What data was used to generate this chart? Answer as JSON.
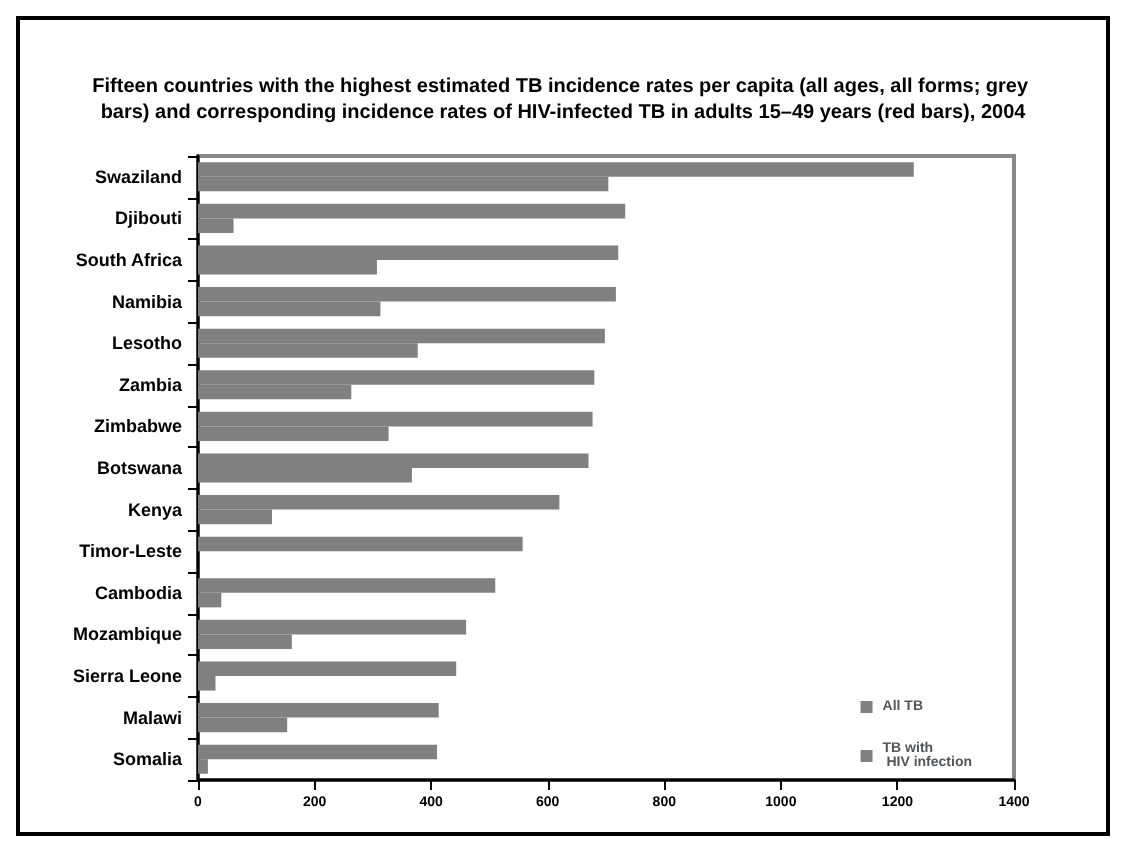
{
  "chart_data": {
    "type": "bar",
    "orientation": "horizontal",
    "title": "Fifteen countries with the highest estimated TB incidence rates per capita (all ages, all forms; grey bars) and corresponding incidence rates of HIV-infected TB in adults 15–49 years (red bars), 2004",
    "categories": [
      "Swaziland",
      "Djibouti",
      "South Africa",
      "Namibia",
      "Lesotho",
      "Zambia",
      "Zimbabwe",
      "Botswana",
      "Kenya",
      "Timor-Leste",
      "Cambodia",
      "Mozambique",
      "Sierra Leone",
      "Malawi",
      "Somalia"
    ],
    "series": [
      {
        "name": "All TB",
        "color": "#808080",
        "values": [
          1228,
          733,
          721,
          717,
          698,
          680,
          677,
          670,
          620,
          557,
          510,
          460,
          443,
          413,
          410
        ]
      },
      {
        "name": "TB with\n HIV infection",
        "color": "#808080",
        "values": [
          704,
          61,
          307,
          313,
          377,
          263,
          327,
          367,
          127,
          null,
          40,
          161,
          30,
          153,
          17
        ]
      }
    ],
    "xlim": [
      0,
      1400
    ],
    "xticks": [
      0,
      200,
      400,
      600,
      800,
      1000,
      1200,
      1400
    ],
    "grid": false,
    "legend": "bottom right"
  }
}
